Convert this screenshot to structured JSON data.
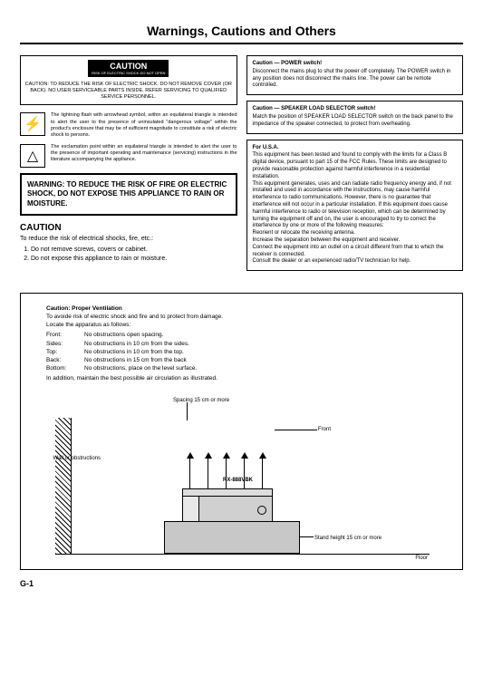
{
  "title": "Warnings, Cautions and Others",
  "caution_label_big": "CAUTION",
  "caution_label_sm": "RISK OF ELECTRIC SHOCK DO NOT OPEN",
  "caution_text": "CAUTION: TO REDUCE THE RISK OF ELECTRIC SHOCK. DO NOT REMOVE COVER (OR BACK). NO USER SERVICEABLE PARTS INSIDE. REFER SERVICING TO QUALIFIED SERVICE PERSONNEL.",
  "sym1": "The lightning flash with arrowhead symbol, within an equilateral triangle is intended to alert the user to the presence of uninsulated \"dangerous voltage\" within the product's enclosure that may be of sufficient magnitude to constitute a risk of electric shock to persons.",
  "sym2": "The exclamation point within an equilateral triangle is intended to alert the user to the presence of important operating and maintenance (servicing) instructions in the literature accompanying the appliance.",
  "warning_box": "WARNING: TO REDUCE THE RISK OF FIRE OR ELECTRIC SHOCK, DO NOT EXPOSE THIS APPLIANCE TO RAIN OR MOISTURE.",
  "caution_h": "CAUTION",
  "caution_intro": "To reduce the risk of electrical shocks, fire, etc.:",
  "caution_1": "Do not remove screws, covers or cabinet.",
  "caution_2": "Do not expose this appliance to rain or moisture.",
  "box1_h": "Caution — POWER switch!",
  "box1_t": "Disconnect the mains plug to shut the power off completely. The POWER switch in any position does not disconnect the mains line. The power can be remote controlled.",
  "box2_h": "Caution — SPEAKER LOAD SELECTOR switch!",
  "box2_t": "Match the position of SPEAKER LOAD SELECTOR switch on the back panel to the impedance of the speaker connected, to protect from overheating.",
  "box3_h": "For U.S.A.",
  "box3_t1": "This equipment has been tested and found to comply with the limits for a Class B digital device, pursuant to part 15 of the FCC Rules. These limits are designed to provide reasonable protection against harmful interference in a residential installation.",
  "box3_t2": "This equipment generates, uses and can radiate radio frequency energy and, if not installed and used in accordance with the instructions, may cause harmful interference to radio communications. However, there is no guarantee that interference will not occur in a particular installation. If this equipment does cause harmful interference to radio or television reception, which can be determined by turning the equipment off and on, the user is encouraged to try to correct the interference by one or more of the following measures:",
  "box3_t3": "Reorient or relocate the receiving antenna.",
  "box3_t4": "Increase the separation between the equipment and receiver.",
  "box3_t5": "Connect the equipment into an outlet on a circuit different from that to which the receiver is connected.",
  "box3_t6": "Consult the dealer or an experienced radio/TV technician for help.",
  "vent_h": "Caution: Proper Ventilation",
  "vent_p1": "To avoide risk of electric shock and fire and to protect from damage.",
  "vent_p2": "Locate the apparatus as follows:",
  "vent_front_k": "Front:",
  "vent_front_v": "No obstructions open spacing.",
  "vent_sides_k": "Sides:",
  "vent_sides_v": "No obstructions in 10 cm from the sides.",
  "vent_top_k": "Top:",
  "vent_top_v": "No obstructions in 10 cm from the top.",
  "vent_back_k": "Back:",
  "vent_back_v": "No obstructions in 15 cm from the back",
  "vent_bottom_k": "Bottom:",
  "vent_bottom_v": "No obstructions, place on the level surface.",
  "vent_p3": "In addition, maintain the best possible air circulation as illustrated.",
  "d_spacing": "Spacing 15 cm or more",
  "d_front": "Front",
  "d_wall": "Wall or obstructions",
  "d_model": "RX-888VBK",
  "d_stand": "Stand height 15 cm or more",
  "d_floor": "Floor",
  "page": "G-1"
}
